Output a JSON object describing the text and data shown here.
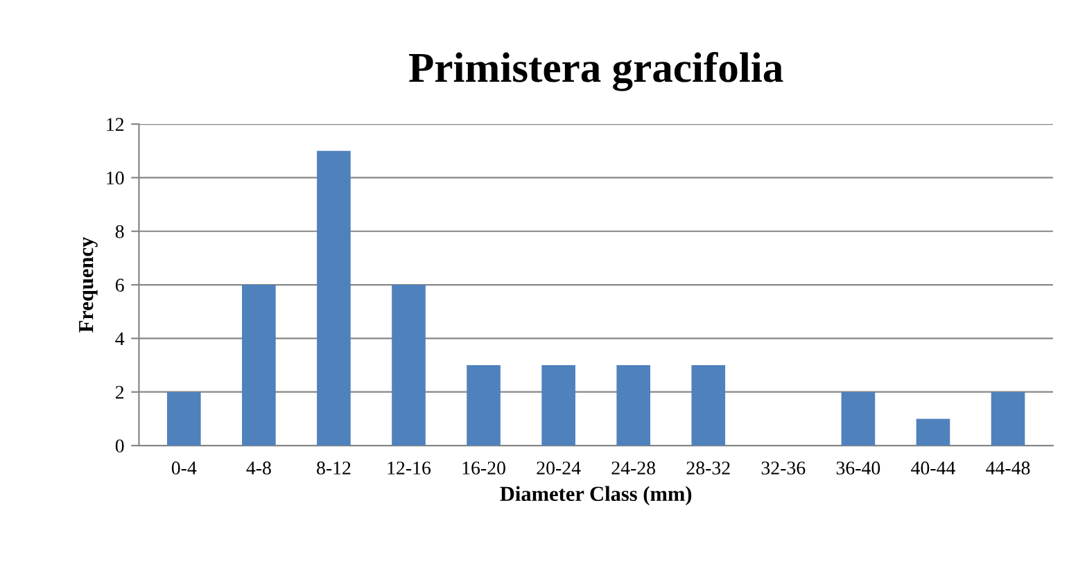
{
  "chart_data": {
    "type": "bar",
    "title": "Primistera gracifolia",
    "xlabel": "Diameter Class (mm)",
    "ylabel": "Frequency",
    "categories": [
      "0-4",
      "4-8",
      "8-12",
      "12-16",
      "16-20",
      "20-24",
      "24-28",
      "28-32",
      "32-36",
      "36-40",
      "40-44",
      "44-48"
    ],
    "values": [
      2,
      6,
      11,
      6,
      3,
      3,
      3,
      3,
      0,
      2,
      1,
      2
    ],
    "color": "#4f81bd",
    "ylim": [
      0,
      12
    ],
    "yticks": [
      0,
      2,
      4,
      6,
      8,
      10,
      12
    ],
    "grid": "y",
    "legend": false
  }
}
